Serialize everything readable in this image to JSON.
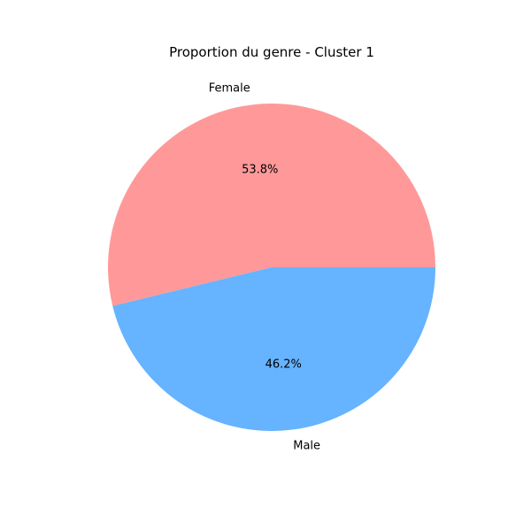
{
  "chart_data": {
    "type": "pie",
    "title": "Proportion du genre - Cluster 1",
    "slices": [
      {
        "label": "Female",
        "value": 53.8,
        "pct_label": "53.8%",
        "color": "#ff9999"
      },
      {
        "label": "Male",
        "value": 46.2,
        "pct_label": "46.2%",
        "color": "#66b3ff"
      }
    ],
    "start_angle_deg": 0,
    "direction": "counterclockwise"
  }
}
